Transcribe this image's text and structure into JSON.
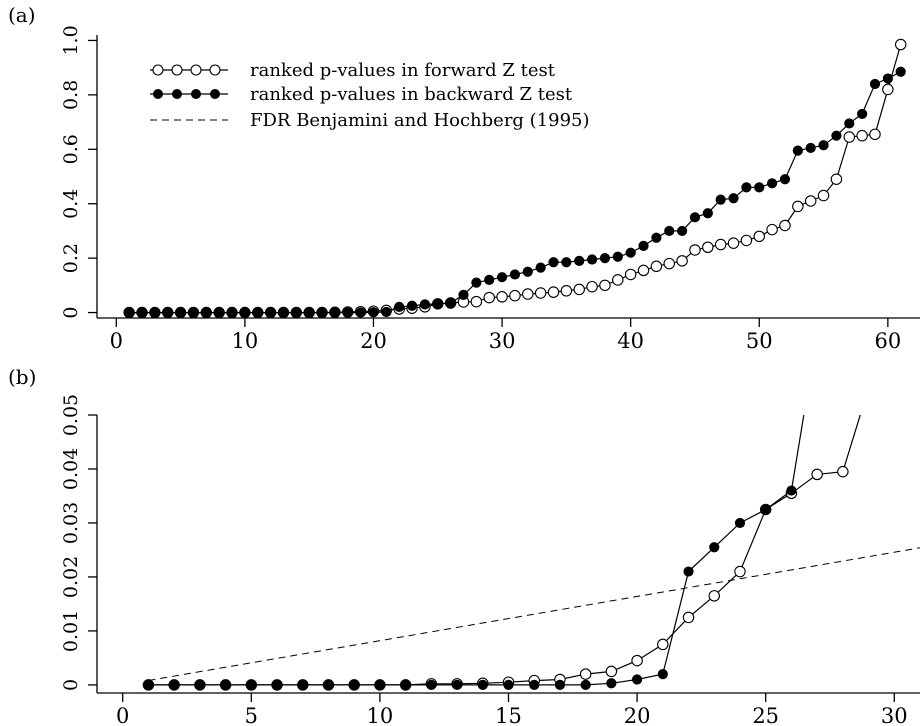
{
  "chart_data": [
    {
      "panel_label": "(a)",
      "type": "line",
      "xlim": [
        -1.5,
        62.5
      ],
      "ylim": [
        -0.02,
        1.02
      ],
      "x_ticks": [
        0,
        10,
        20,
        30,
        40,
        50,
        60
      ],
      "x_tick_labels": [
        "0",
        "10",
        "20",
        "30",
        "40",
        "50",
        "60"
      ],
      "y_ticks": [
        0,
        0.2,
        0.4,
        0.6,
        0.8,
        1.0
      ],
      "y_tick_labels": [
        "0",
        "0.2",
        "0.4",
        "0.6",
        "0.8",
        "1.0"
      ],
      "legend": {
        "position": "top-left",
        "entries": [
          {
            "marker": "open",
            "label": "ranked p-values in forward Z test"
          },
          {
            "marker": "filled",
            "label": "ranked p-values in backward Z test"
          },
          {
            "marker": "dashed",
            "label": "FDR Benjamini and Hochberg (1995)"
          }
        ]
      },
      "series": [
        {
          "marker": "open",
          "x": [
            1,
            2,
            3,
            4,
            5,
            6,
            7,
            8,
            9,
            10,
            11,
            12,
            13,
            14,
            15,
            16,
            17,
            18,
            19,
            20,
            21,
            22,
            23,
            24,
            25,
            26,
            27,
            28,
            29,
            30,
            31,
            32,
            33,
            34,
            35,
            36,
            37,
            38,
            39,
            40,
            41,
            42,
            43,
            44,
            45,
            46,
            47,
            48,
            49,
            50,
            51,
            52,
            53,
            54,
            55,
            56,
            57,
            58,
            59,
            60,
            61
          ],
          "values": [
            0,
            0,
            0,
            0,
            0,
            0,
            0,
            0,
            0,
            0,
            0,
            0,
            0,
            0,
            0,
            0,
            0.001,
            0.002,
            0.003,
            0.005,
            0.008,
            0.013,
            0.016,
            0.021,
            0.032,
            0.035,
            0.039,
            0.04,
            0.055,
            0.058,
            0.062,
            0.068,
            0.072,
            0.075,
            0.08,
            0.085,
            0.095,
            0.1,
            0.12,
            0.14,
            0.155,
            0.17,
            0.18,
            0.19,
            0.23,
            0.24,
            0.25,
            0.255,
            0.265,
            0.28,
            0.305,
            0.32,
            0.39,
            0.41,
            0.43,
            0.49,
            0.645,
            0.65,
            0.655,
            0.82,
            0.985
          ]
        },
        {
          "marker": "filled",
          "x": [
            1,
            2,
            3,
            4,
            5,
            6,
            7,
            8,
            9,
            10,
            11,
            12,
            13,
            14,
            15,
            16,
            17,
            18,
            19,
            20,
            21,
            22,
            23,
            24,
            25,
            26,
            27,
            28,
            29,
            30,
            31,
            32,
            33,
            34,
            35,
            36,
            37,
            38,
            39,
            40,
            41,
            42,
            43,
            44,
            45,
            46,
            47,
            48,
            49,
            50,
            51,
            52,
            53,
            54,
            55,
            56,
            57,
            58,
            59,
            60,
            61
          ],
          "values": [
            0,
            0,
            0,
            0,
            0,
            0,
            0,
            0,
            0,
            0,
            0,
            0,
            0,
            0,
            0,
            0,
            0,
            0,
            0,
            0.001,
            0.002,
            0.021,
            0.025,
            0.03,
            0.032,
            0.036,
            0.065,
            0.11,
            0.12,
            0.13,
            0.14,
            0.15,
            0.165,
            0.185,
            0.185,
            0.19,
            0.195,
            0.2,
            0.205,
            0.22,
            0.245,
            0.275,
            0.3,
            0.3,
            0.35,
            0.365,
            0.415,
            0.42,
            0.46,
            0.46,
            0.475,
            0.49,
            0.595,
            0.605,
            0.615,
            0.65,
            0.695,
            0.73,
            0.84,
            0.86,
            0.885
          ]
        }
      ]
    },
    {
      "panel_label": "(b)",
      "type": "line",
      "xlim": [
        -1,
        31
      ],
      "ylim": [
        -0.0015,
        0.05
      ],
      "x_ticks": [
        0,
        5,
        10,
        15,
        20,
        25,
        30
      ],
      "x_tick_labels": [
        "0",
        "5",
        "10",
        "15",
        "20",
        "25",
        "30"
      ],
      "y_ticks": [
        0,
        0.01,
        0.02,
        0.03,
        0.04,
        0.05
      ],
      "y_tick_labels": [
        "0",
        "0.01",
        "0.02",
        "0.03",
        "0.04",
        "0.05"
      ],
      "series": [
        {
          "marker": "open",
          "x": [
            1,
            2,
            3,
            4,
            5,
            6,
            7,
            8,
            9,
            10,
            11,
            12,
            13,
            14,
            15,
            16,
            17,
            18,
            19,
            20,
            21,
            22,
            23,
            24,
            25,
            26,
            27,
            28,
            29
          ],
          "values": [
            0,
            0,
            0,
            0,
            0,
            0,
            0,
            0,
            0,
            0,
            0,
            0.0002,
            0.0002,
            0.0003,
            0.0005,
            0.0008,
            0.001,
            0.002,
            0.0025,
            0.0045,
            0.0075,
            0.0125,
            0.0165,
            0.021,
            0.0325,
            0.0355,
            0.039,
            0.0395,
            0.055
          ]
        },
        {
          "marker": "filled",
          "x": [
            1,
            2,
            3,
            4,
            5,
            6,
            7,
            8,
            9,
            10,
            11,
            12,
            13,
            14,
            15,
            16,
            17,
            18,
            19,
            20,
            21,
            22,
            23,
            24,
            25,
            26,
            27
          ],
          "values": [
            0,
            0,
            0,
            0,
            0,
            0,
            0,
            0,
            0,
            0,
            0,
            0,
            0,
            0,
            0,
            0,
            0,
            0,
            0.0003,
            0.001,
            0.002,
            0.021,
            0.0255,
            0.03,
            0.0325,
            0.036,
            0.065
          ]
        },
        {
          "marker": "dashed",
          "x": [
            1,
            31
          ],
          "values": [
            0.00082,
            0.0254
          ]
        }
      ]
    }
  ]
}
